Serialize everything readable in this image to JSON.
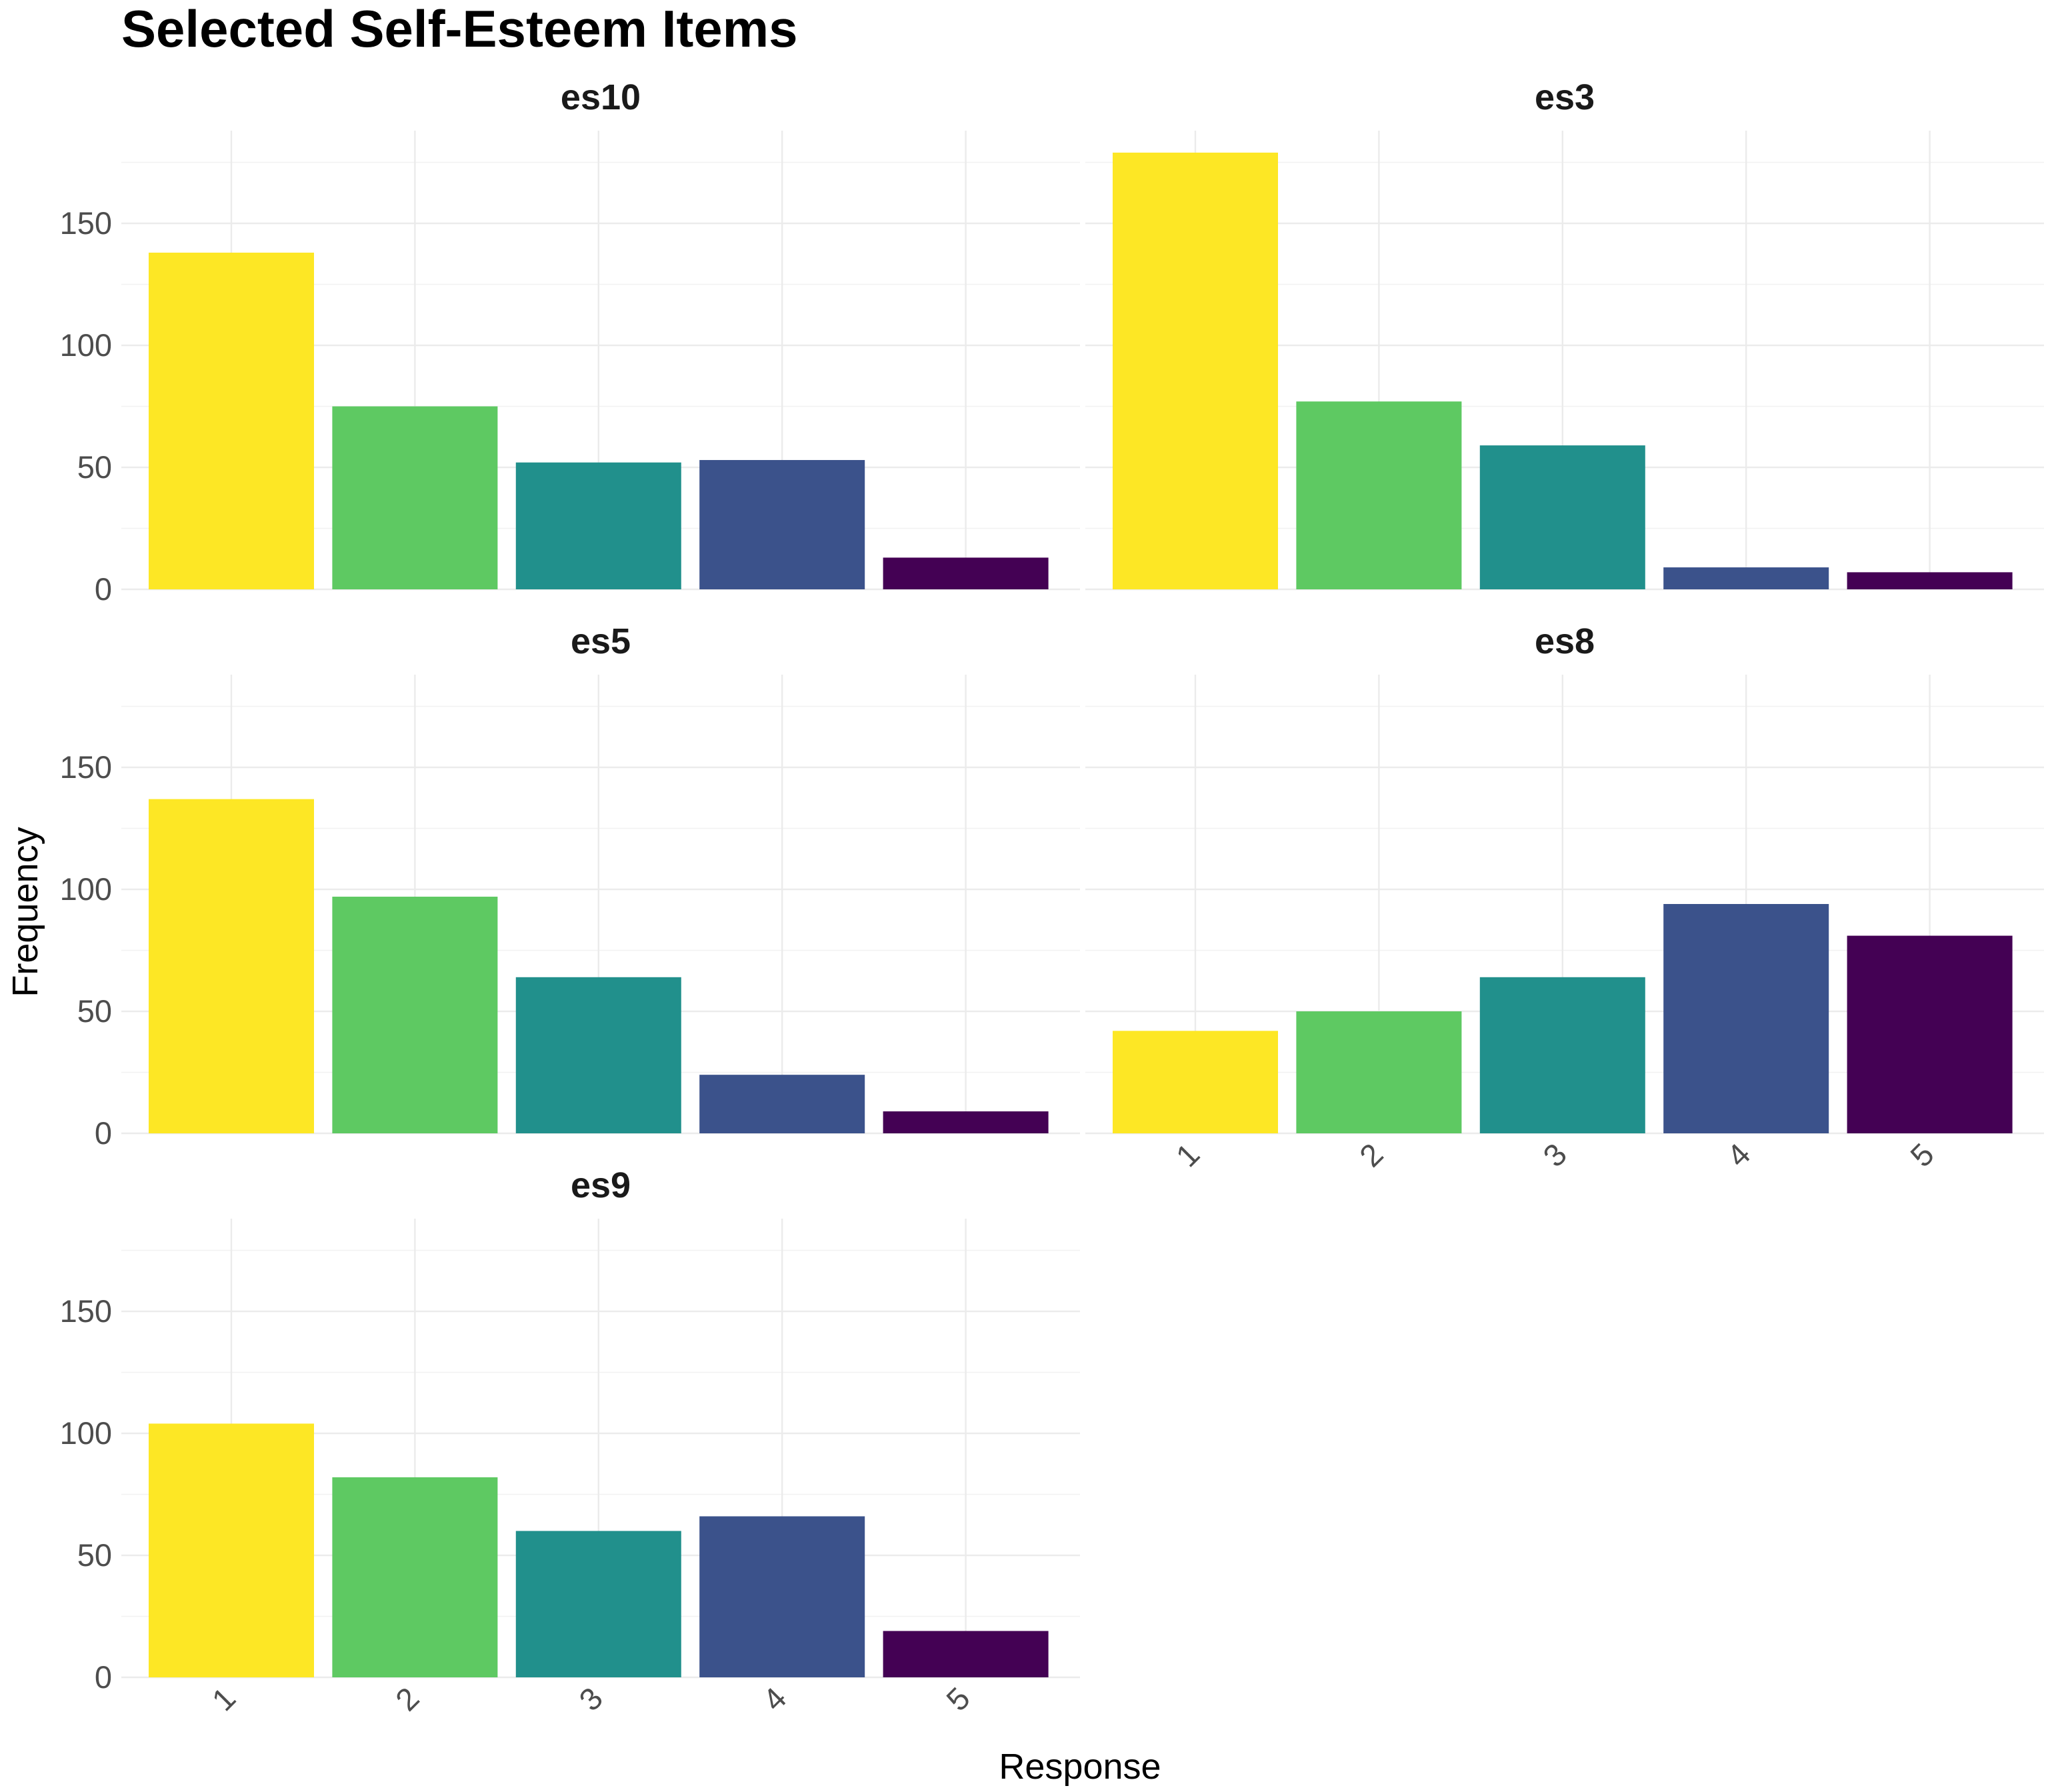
{
  "chart_data": {
    "type": "bar",
    "title": "Selected Self-Esteem Items",
    "xlabel": "Response",
    "ylabel": "Frequency",
    "categories": [
      "1",
      "2",
      "3",
      "4",
      "5"
    ],
    "ylim": [
      0,
      188
    ],
    "yticks": [
      0,
      50,
      100,
      150
    ],
    "colors": [
      "#FDE725",
      "#5EC962",
      "#21908C",
      "#3B528B",
      "#440154"
    ],
    "facets": [
      {
        "name": "es10",
        "values": [
          138,
          75,
          52,
          53,
          13
        ]
      },
      {
        "name": "es3",
        "values": [
          179,
          77,
          59,
          9,
          7
        ]
      },
      {
        "name": "es5",
        "values": [
          137,
          97,
          64,
          24,
          9
        ]
      },
      {
        "name": "es8",
        "values": [
          42,
          50,
          64,
          94,
          81
        ]
      },
      {
        "name": "es9",
        "values": [
          104,
          82,
          60,
          66,
          19
        ]
      }
    ]
  }
}
